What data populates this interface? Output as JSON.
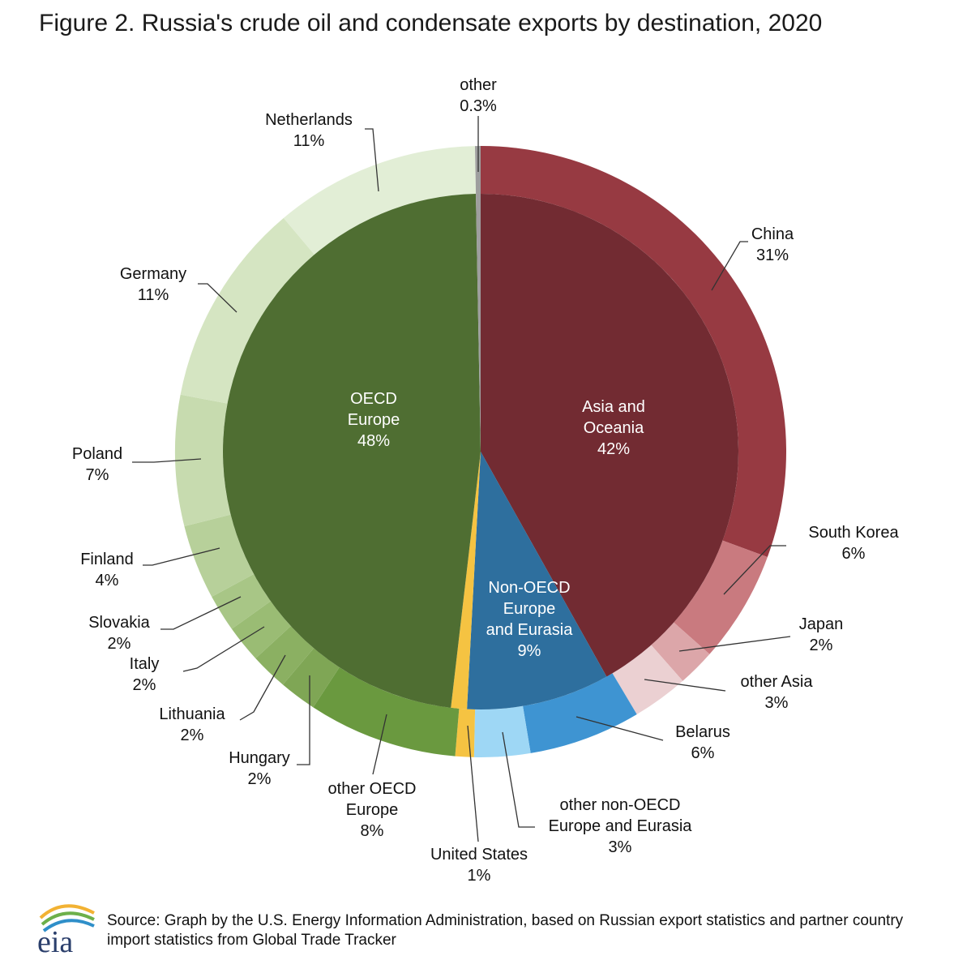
{
  "title": "Figure 2. Russia's crude oil and condensate exports by destination, 2020",
  "source_text": "Source: Graph by the U.S. Energy Information Administration, based on Russian export statistics and partner country import statistics from Global Trade Tracker",
  "logo_text": "eia",
  "chart_data": {
    "type": "pie",
    "subtype": "two-level donut",
    "title": "Figure 2. Russia's crude oil and condensate exports by destination, 2020",
    "inner": [
      {
        "name": "Asia and Oceania",
        "lines": [
          "Asia and",
          "Oceania",
          "42%"
        ],
        "value": 42,
        "color": "#722B32"
      },
      {
        "name": "Non-OECD Europe and Eurasia",
        "lines": [
          "Non-OECD",
          "Europe",
          "and Eurasia",
          "9%"
        ],
        "value": 9,
        "color": "#2E6F9E"
      },
      {
        "name": "United States",
        "lines": [],
        "value": 1,
        "color": "#F5C342"
      },
      {
        "name": "OECD Europe",
        "lines": [
          "OECD",
          "Europe",
          "48%"
        ],
        "value": 48,
        "color": "#4F6E32"
      },
      {
        "name": "other",
        "lines": [],
        "value": 0.3,
        "color": "#9E9E9E"
      }
    ],
    "outer": [
      {
        "name": "China",
        "lines": [
          "China",
          "31%"
        ],
        "value": 31,
        "color": "#973A42"
      },
      {
        "name": "South Korea",
        "lines": [
          "South Korea",
          "6%"
        ],
        "value": 6,
        "color": "#C97A7F"
      },
      {
        "name": "Japan",
        "lines": [
          "Japan",
          "2%"
        ],
        "value": 2,
        "color": "#DCA6A9"
      },
      {
        "name": "other Asia",
        "lines": [
          "other Asia",
          "3%"
        ],
        "value": 3,
        "color": "#EBD0D2"
      },
      {
        "name": "Belarus",
        "lines": [
          "Belarus",
          "6%"
        ],
        "value": 6,
        "color": "#3E94D2"
      },
      {
        "name": "other non-OECD Europe and Eurasia",
        "lines": [
          "other non-OECD",
          "Europe and Eurasia",
          "3%"
        ],
        "value": 3,
        "color": "#9ED7F5"
      },
      {
        "name": "United States",
        "lines": [
          "United States",
          "1%"
        ],
        "value": 1,
        "color": "#F5C342"
      },
      {
        "name": "other OECD Europe",
        "lines": [
          "other OECD",
          "Europe",
          "8%"
        ],
        "value": 8,
        "color": "#6A993F"
      },
      {
        "name": "Hungary",
        "lines": [
          "Hungary",
          "2%"
        ],
        "value": 2,
        "color": "#7FA655"
      },
      {
        "name": "Lithuania",
        "lines": [
          "Lithuania",
          "2%"
        ],
        "value": 2,
        "color": "#8BB062"
      },
      {
        "name": "Italy",
        "lines": [
          "Italy",
          "2%"
        ],
        "value": 2,
        "color": "#9ABC74"
      },
      {
        "name": "Slovakia",
        "lines": [
          "Slovakia",
          "2%"
        ],
        "value": 2,
        "color": "#A8C686"
      },
      {
        "name": "Finland",
        "lines": [
          "Finland",
          "4%"
        ],
        "value": 4,
        "color": "#B7D09A"
      },
      {
        "name": "Poland",
        "lines": [
          "Poland",
          "7%"
        ],
        "value": 7,
        "color": "#C7DBAF"
      },
      {
        "name": "Germany",
        "lines": [
          "Germany",
          "11%"
        ],
        "value": 11,
        "color": "#D5E5C2"
      },
      {
        "name": "Netherlands",
        "lines": [
          "Netherlands",
          "11%"
        ],
        "value": 11,
        "color": "#E2EED6"
      },
      {
        "name": "other",
        "lines": [
          "other",
          "0.3%"
        ],
        "value": 0.3,
        "color": "#9E9E9E"
      }
    ]
  }
}
